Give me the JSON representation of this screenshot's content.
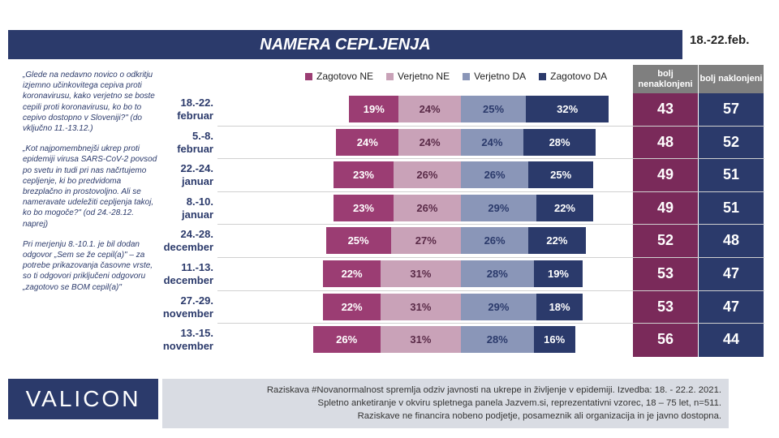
{
  "title": "NAMERA CEPLJENJA",
  "date_range": "18.-22.feb.",
  "notes": [
    "„Glede na nedavno novico o odkritju izjemno učinkovitega cepiva proti koronavirusu, kako verjetno se boste cepili proti koronavirusu, ko bo to cepivo dostopno v Sloveniji?\" (do vključno 11.-13.12.)",
    "„Kot najpomembnejši ukrep proti epidemiji virusa SARS-CoV-2 povsod po svetu in tudi pri nas načrtujemo cepljenje, ki bo predvidoma brezplačno in prostovoljno. Ali se nameravate udeležiti cepljenja takoj, ko bo mogoče?\" (od 24.-28.12. naprej)",
    "Pri merjenju 8.-10.1. je bil dodan odgovor „Sem se že cepil(a)\" – za potrebe prikazovanja časovne vrste, so ti odgovori priključeni odgovoru „zagotovo se BOM cepil(a)\""
  ],
  "col_headers": {
    "against": "bolj nenaklonjeni",
    "for": "bolj naklonjeni"
  },
  "logo": "VALICON",
  "footer": [
    "Raziskava #Novanormalnost spremlja odziv javnosti na ukrepe in življenje v epidemiji. Izvedba: 18. - 22.2. 2021.",
    "Spletno anketiranje v okviru spletnega panela Jazvem.si, reprezentativni vzorec, 18 – 75 let, n=511.",
    "Raziskave ne financira nobeno podjetje, posameznik ali organizacija in je javno dostopna."
  ],
  "colors": {
    "zagotovo_ne": "#9b3d73",
    "verjetno_ne": "#c9a2b8",
    "verjetno_da": "#8a96b8",
    "zagotovo_da": "#2b3a6b",
    "col_against": "#7a2a5a",
    "col_for": "#2b3a6b"
  },
  "chart_data": {
    "type": "bar",
    "orientation": "horizontal-diverging",
    "categories": [
      [
        "18.-22.",
        "februar"
      ],
      [
        "5.-8.",
        "februar"
      ],
      [
        "22.-24.",
        "januar"
      ],
      [
        "8.-10.",
        "januar"
      ],
      [
        "24.-28.",
        "december"
      ],
      [
        "11.-13.",
        "december"
      ],
      [
        "27.-29.",
        "november"
      ],
      [
        "13.-15.",
        "november"
      ]
    ],
    "series": [
      {
        "name": "Zagotovo NE",
        "values": [
          19,
          24,
          23,
          23,
          25,
          22,
          22,
          26
        ]
      },
      {
        "name": "Verjetno NE",
        "values": [
          24,
          24,
          26,
          26,
          27,
          31,
          31,
          31
        ]
      },
      {
        "name": "Verjetno DA",
        "values": [
          25,
          24,
          26,
          29,
          26,
          28,
          29,
          28
        ]
      },
      {
        "name": "Zagotovo DA",
        "values": [
          32,
          28,
          25,
          22,
          22,
          19,
          18,
          16
        ]
      }
    ],
    "bolj_nenaklonjeni": [
      43,
      48,
      49,
      49,
      52,
      53,
      53,
      56
    ],
    "bolj_naklonjeni": [
      57,
      52,
      51,
      51,
      48,
      47,
      47,
      44
    ]
  }
}
